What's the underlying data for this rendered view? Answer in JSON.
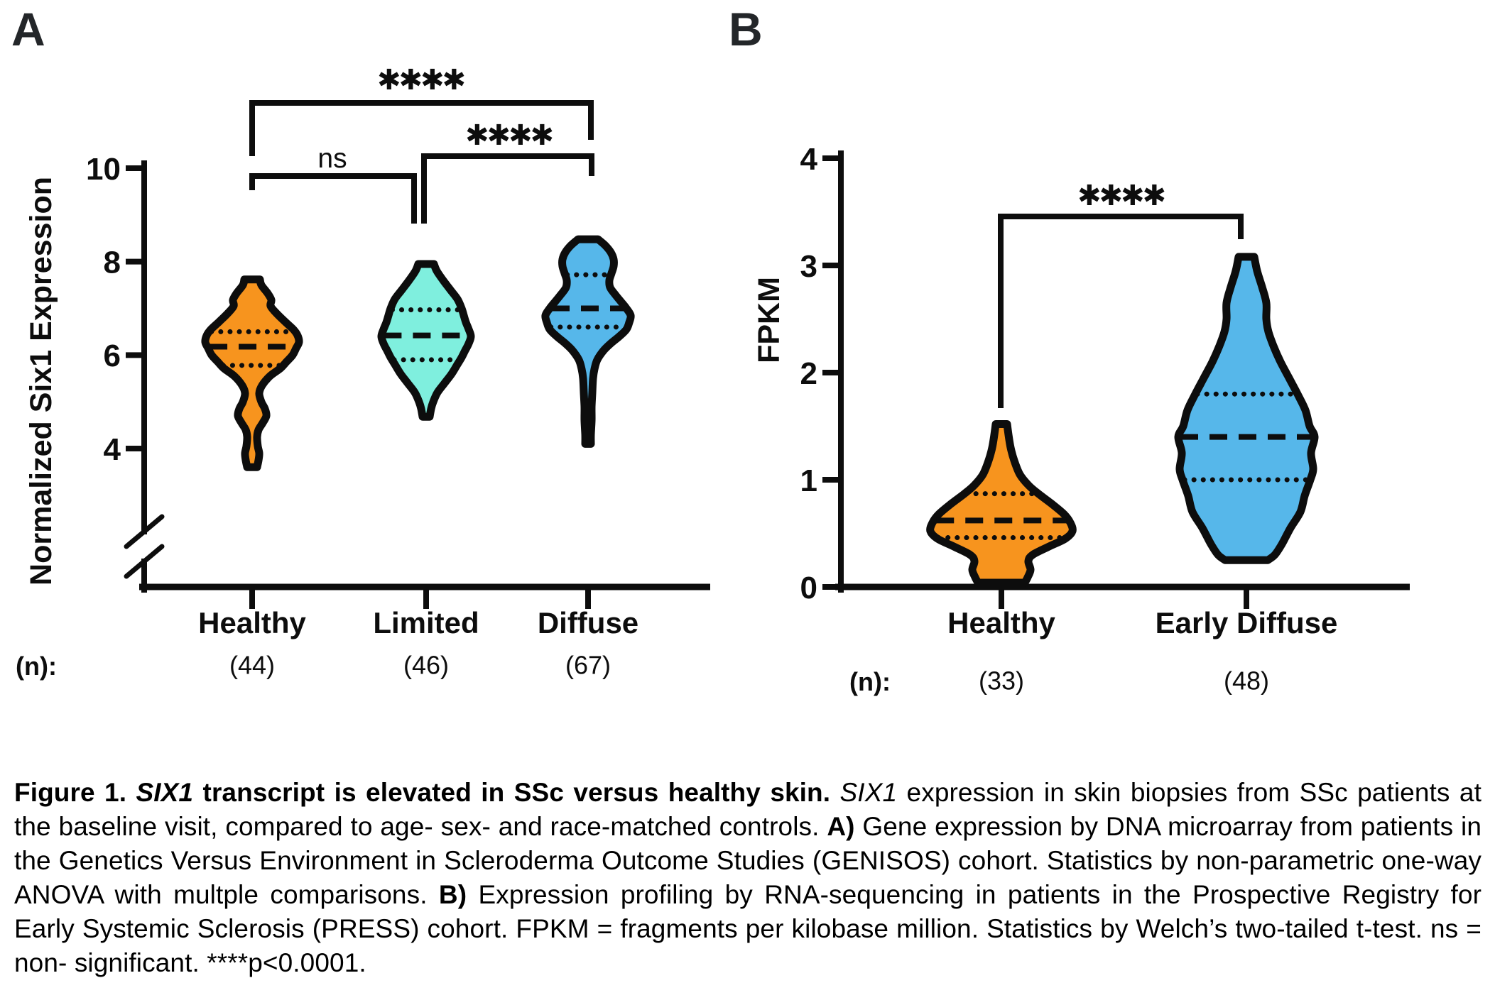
{
  "chart_data": [
    {
      "type": "violin",
      "panel_label": "A",
      "title": "",
      "ylabel": "Normalized Six1 Expression",
      "xlabel": "",
      "yticks": [
        10,
        8,
        6,
        4
      ],
      "ylim": [
        3.3,
        10
      ],
      "axis_break_below_first_tick": true,
      "grid": false,
      "n_row_label": "(n):",
      "categories": [
        "Healthy",
        "Limited",
        "Diffuse"
      ],
      "n_labels": [
        "(44)",
        "(46)",
        "(67)"
      ],
      "series": [
        {
          "name": "Healthy",
          "n": 44,
          "fill_color": "#F7941E",
          "outline_color": "#0d0d0d",
          "median": 6.18,
          "q1": 5.78,
          "q3": 6.5,
          "max": 7.62,
          "min": 3.6,
          "flat_top": true,
          "flat_bottom": true,
          "density": [
            [
              7.62,
              11
            ],
            [
              7.5,
              13
            ],
            [
              7.32,
              22
            ],
            [
              7.18,
              27
            ],
            [
              7.05,
              26
            ],
            [
              6.9,
              34
            ],
            [
              6.72,
              46
            ],
            [
              6.55,
              58
            ],
            [
              6.42,
              64
            ],
            [
              6.28,
              66
            ],
            [
              6.15,
              62
            ],
            [
              6.0,
              57
            ],
            [
              5.85,
              48
            ],
            [
              5.72,
              40
            ],
            [
              5.55,
              25
            ],
            [
              5.35,
              14
            ],
            [
              5.18,
              10
            ],
            [
              5.0,
              13
            ],
            [
              4.85,
              18
            ],
            [
              4.7,
              20
            ],
            [
              4.55,
              15
            ],
            [
              4.4,
              9
            ],
            [
              4.25,
              7
            ],
            [
              4.05,
              8
            ],
            [
              3.9,
              10
            ],
            [
              3.75,
              9
            ],
            [
              3.6,
              7
            ]
          ]
        },
        {
          "name": "Limited",
          "n": 46,
          "fill_color": "#7FEFDE",
          "outline_color": "#0d0d0d",
          "median": 6.42,
          "q1": 5.9,
          "q3": 6.97,
          "max": 7.95,
          "min": 4.68,
          "flat_top": true,
          "flat_bottom": false,
          "density": [
            [
              7.95,
              11
            ],
            [
              7.8,
              15
            ],
            [
              7.6,
              24
            ],
            [
              7.4,
              34
            ],
            [
              7.2,
              44
            ],
            [
              7.0,
              50
            ],
            [
              6.85,
              53
            ],
            [
              6.7,
              56
            ],
            [
              6.55,
              60
            ],
            [
              6.4,
              63
            ],
            [
              6.25,
              60
            ],
            [
              6.1,
              55
            ],
            [
              5.95,
              50
            ],
            [
              5.8,
              44
            ],
            [
              5.6,
              36
            ],
            [
              5.4,
              26
            ],
            [
              5.2,
              16
            ],
            [
              5.0,
              10
            ],
            [
              4.85,
              7
            ],
            [
              4.68,
              5
            ]
          ]
        },
        {
          "name": "Diffuse",
          "n": 67,
          "fill_color": "#56B7EA",
          "outline_color": "#0d0d0d",
          "median": 7.0,
          "q1": 6.6,
          "q3": 7.72,
          "max": 8.48,
          "min": 4.1,
          "flat_top": true,
          "flat_bottom": false,
          "density": [
            [
              8.48,
              14
            ],
            [
              8.35,
              24
            ],
            [
              8.2,
              32
            ],
            [
              8.05,
              36
            ],
            [
              7.9,
              36
            ],
            [
              7.75,
              33
            ],
            [
              7.6,
              30
            ],
            [
              7.45,
              31
            ],
            [
              7.3,
              38
            ],
            [
              7.15,
              46
            ],
            [
              7.0,
              54
            ],
            [
              6.85,
              60
            ],
            [
              6.7,
              58
            ],
            [
              6.55,
              54
            ],
            [
              6.4,
              44
            ],
            [
              6.25,
              32
            ],
            [
              6.1,
              22
            ],
            [
              5.9,
              13
            ],
            [
              5.7,
              9
            ],
            [
              5.5,
              7
            ],
            [
              5.2,
              6
            ],
            [
              4.9,
              5
            ],
            [
              4.6,
              5
            ],
            [
              4.3,
              4
            ],
            [
              4.1,
              4
            ]
          ]
        }
      ],
      "annotations": [
        {
          "between": [
            "Healthy",
            "Diffuse"
          ],
          "label": "****"
        },
        {
          "between": [
            "Healthy",
            "Limited"
          ],
          "label": "ns"
        },
        {
          "between": [
            "Limited",
            "Diffuse"
          ],
          "label": "****"
        }
      ]
    },
    {
      "type": "violin",
      "panel_label": "B",
      "title": "",
      "ylabel": "FPKM",
      "xlabel": "",
      "yticks": [
        4,
        3,
        2,
        1,
        0
      ],
      "ylim": [
        0,
        4
      ],
      "axis_break_below_first_tick": false,
      "grid": false,
      "n_row_label": "(n):",
      "categories": [
        "Healthy",
        "Early Diffuse"
      ],
      "n_labels": [
        "(33)",
        "(48)"
      ],
      "series": [
        {
          "name": "Healthy",
          "n": 33,
          "fill_color": "#F7941E",
          "outline_color": "#0d0d0d",
          "median": 0.62,
          "q1": 0.46,
          "q3": 0.87,
          "max": 1.52,
          "min": 0.04,
          "flat_top": true,
          "flat_bottom": true,
          "density": [
            [
              1.52,
              8
            ],
            [
              1.42,
              10
            ],
            [
              1.3,
              13
            ],
            [
              1.18,
              18
            ],
            [
              1.05,
              26
            ],
            [
              0.95,
              38
            ],
            [
              0.87,
              52
            ],
            [
              0.78,
              70
            ],
            [
              0.68,
              88
            ],
            [
              0.6,
              97
            ],
            [
              0.52,
              100
            ],
            [
              0.45,
              90
            ],
            [
              0.38,
              68
            ],
            [
              0.3,
              44
            ],
            [
              0.24,
              38
            ],
            [
              0.16,
              41
            ],
            [
              0.09,
              37
            ],
            [
              0.04,
              33
            ]
          ]
        },
        {
          "name": "Early Diffuse",
          "n": 48,
          "fill_color": "#56B7EA",
          "outline_color": "#0d0d0d",
          "median": 1.4,
          "q1": 1.0,
          "q3": 1.8,
          "max": 3.08,
          "min": 0.25,
          "flat_top": true,
          "flat_bottom": true,
          "density": [
            [
              3.08,
              11
            ],
            [
              2.95,
              15
            ],
            [
              2.8,
              22
            ],
            [
              2.65,
              28
            ],
            [
              2.5,
              28
            ],
            [
              2.38,
              31
            ],
            [
              2.25,
              38
            ],
            [
              2.1,
              48
            ],
            [
              1.95,
              60
            ],
            [
              1.8,
              72
            ],
            [
              1.65,
              83
            ],
            [
              1.5,
              89
            ],
            [
              1.4,
              96
            ],
            [
              1.25,
              91
            ],
            [
              1.1,
              94
            ],
            [
              1.0,
              90
            ],
            [
              0.85,
              82
            ],
            [
              0.7,
              76
            ],
            [
              0.55,
              62
            ],
            [
              0.4,
              50
            ],
            [
              0.3,
              40
            ],
            [
              0.25,
              30
            ]
          ]
        }
      ],
      "annotations": [
        {
          "between": [
            "Healthy",
            "Early Diffuse"
          ],
          "label": "****"
        }
      ]
    }
  ],
  "caption": {
    "segments": [
      {
        "text": "Figure 1. ",
        "style": "bold"
      },
      {
        "text": "SIX1",
        "style": "bold-italic"
      },
      {
        "text": " transcript is elevated in SSc versus healthy skin. ",
        "style": "bold"
      },
      {
        "text": "SIX1",
        "style": "italic"
      },
      {
        "text": " expression in skin biopsies from SSc patients at the baseline visit, compared to age- sex- and race-matched controls. ",
        "style": "regular"
      },
      {
        "text": "A)",
        "style": "bold"
      },
      {
        "text": " Gene expression by DNA microarray from patients in the Genetics Versus Environment in Scleroderma Outcome Studies (GENISOS) cohort. Statistics by non-parametric one-way ANOVA with multple comparisons. ",
        "style": "regular"
      },
      {
        "text": "B)",
        "style": "bold"
      },
      {
        "text": " Expression profiling by RNA-sequencing in patients in the Prospective Registry for Early Systemic Sclerosis (PRESS) cohort. FPKM = fragments per kilobase million. Statistics by Welch’s two-tailed t-test.  ns = non- significant. ****p<0.0001.",
        "style": "regular"
      }
    ]
  }
}
